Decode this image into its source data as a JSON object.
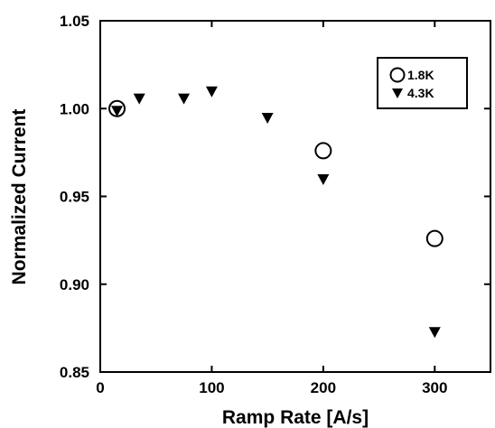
{
  "chart_data": {
    "type": "scatter",
    "xlabel": "Ramp Rate [A/s]",
    "ylabel": "Normalized Current",
    "xlim": [
      0,
      350
    ],
    "ylim": [
      0.85,
      1.05
    ],
    "x_ticks": [
      0,
      100,
      200,
      300
    ],
    "x_tick_labels": [
      "0",
      "100",
      "200",
      "300"
    ],
    "y_ticks": [
      0.85,
      0.9,
      0.95,
      1.0,
      1.05
    ],
    "y_tick_labels": [
      "0.85",
      "0.90",
      "0.95",
      "1.00",
      "1.05"
    ],
    "grid": false,
    "legend_position": "top-right",
    "series": [
      {
        "name": "1.8K",
        "marker": "open-circle",
        "points": [
          {
            "x": 15,
            "y": 1.0
          },
          {
            "x": 200,
            "y": 0.976
          },
          {
            "x": 300,
            "y": 0.926
          }
        ]
      },
      {
        "name": "4.3K",
        "marker": "filled-down-triangle",
        "points": [
          {
            "x": 15,
            "y": 0.999
          },
          {
            "x": 35,
            "y": 1.006
          },
          {
            "x": 75,
            "y": 1.006
          },
          {
            "x": 100,
            "y": 1.01
          },
          {
            "x": 150,
            "y": 0.995
          },
          {
            "x": 200,
            "y": 0.96
          },
          {
            "x": 300,
            "y": 0.873
          }
        ]
      }
    ]
  }
}
